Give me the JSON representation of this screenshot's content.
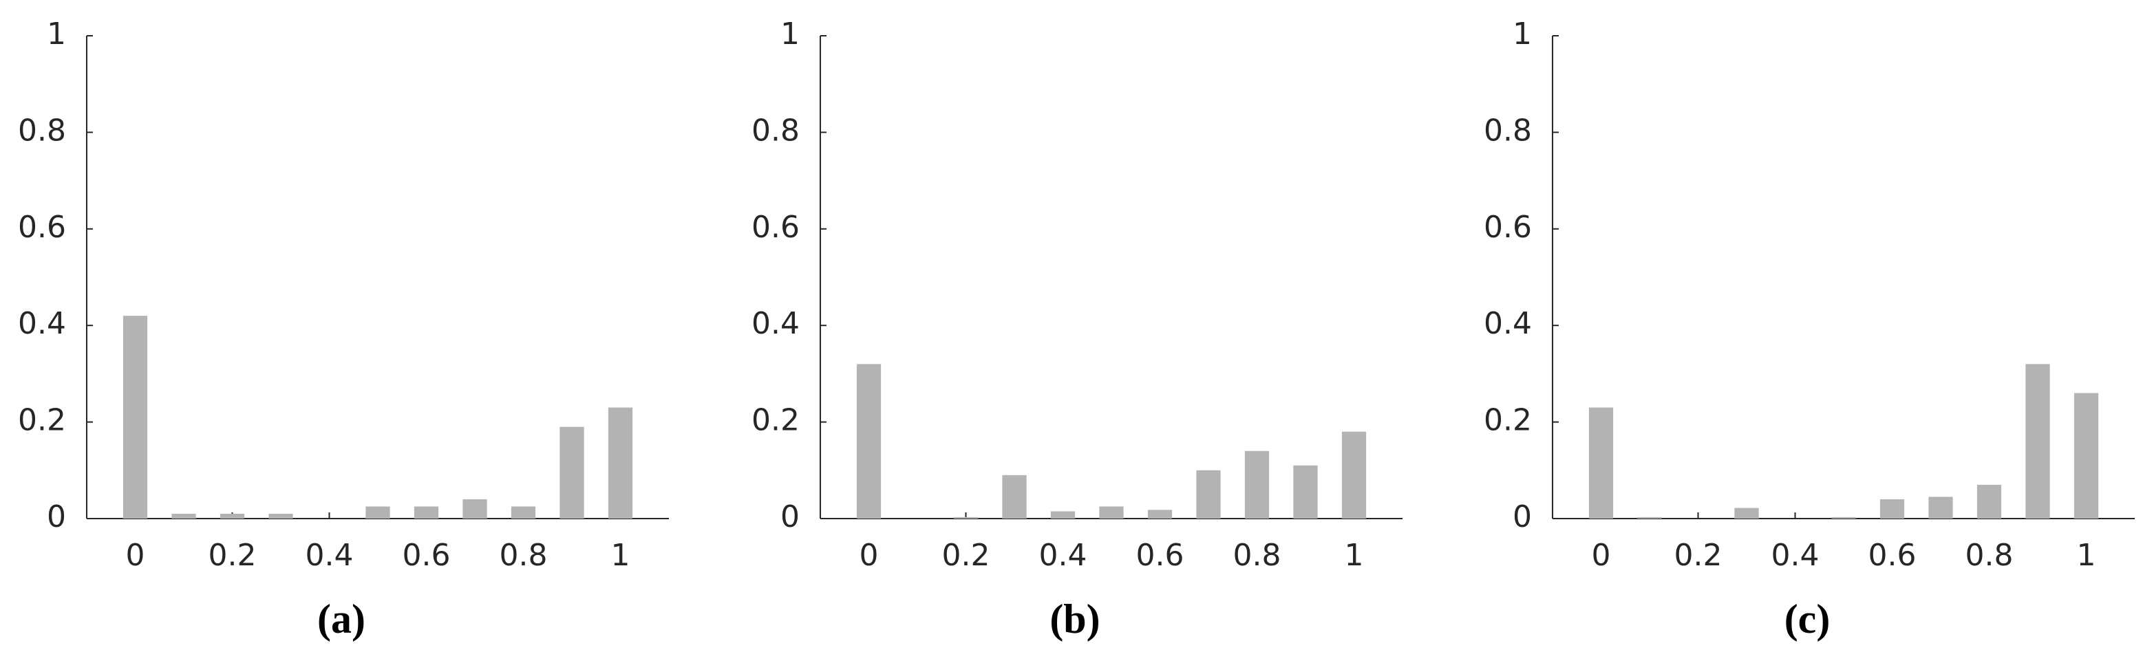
{
  "chart_data": [
    {
      "type": "bar",
      "caption": "(a)",
      "x": [
        0,
        0.1,
        0.2,
        0.3,
        0.4,
        0.5,
        0.6,
        0.7,
        0.8,
        0.9,
        1
      ],
      "values": [
        0.42,
        0.01,
        0.01,
        0.01,
        0,
        0.025,
        0.025,
        0.04,
        0.025,
        0.19,
        0.23
      ],
      "color": "#b3b3b3",
      "xlim": [
        -0.1,
        1.1
      ],
      "ylim": [
        0,
        1
      ],
      "xticks": [
        0,
        0.2,
        0.4,
        0.6,
        0.8,
        1
      ],
      "yticks": [
        0,
        0.2,
        0.4,
        0.6,
        0.8,
        1
      ]
    },
    {
      "type": "bar",
      "caption": "(b)",
      "x": [
        0,
        0.1,
        0.2,
        0.3,
        0.4,
        0.5,
        0.6,
        0.7,
        0.8,
        0.9,
        1
      ],
      "values": [
        0.32,
        0,
        0.003,
        0.09,
        0.015,
        0.025,
        0.018,
        0.1,
        0.14,
        0.11,
        0.18
      ],
      "color": "#b3b3b3",
      "xlim": [
        -0.1,
        1.1
      ],
      "ylim": [
        0,
        1
      ],
      "xticks": [
        0,
        0.2,
        0.4,
        0.6,
        0.8,
        1
      ],
      "yticks": [
        0,
        0.2,
        0.4,
        0.6,
        0.8,
        1
      ]
    },
    {
      "type": "bar",
      "caption": "(c)",
      "x": [
        0,
        0.1,
        0.2,
        0.3,
        0.4,
        0.5,
        0.6,
        0.7,
        0.8,
        0.9,
        1
      ],
      "values": [
        0.23,
        0.003,
        0,
        0.022,
        0,
        0.003,
        0.04,
        0.045,
        0.07,
        0.32,
        0.26
      ],
      "color": "#b3b3b3",
      "xlim": [
        -0.1,
        1.1
      ],
      "ylim": [
        0,
        1
      ],
      "xticks": [
        0,
        0.2,
        0.4,
        0.6,
        0.8,
        1
      ],
      "yticks": [
        0,
        0.2,
        0.4,
        0.6,
        0.8,
        1
      ]
    }
  ]
}
